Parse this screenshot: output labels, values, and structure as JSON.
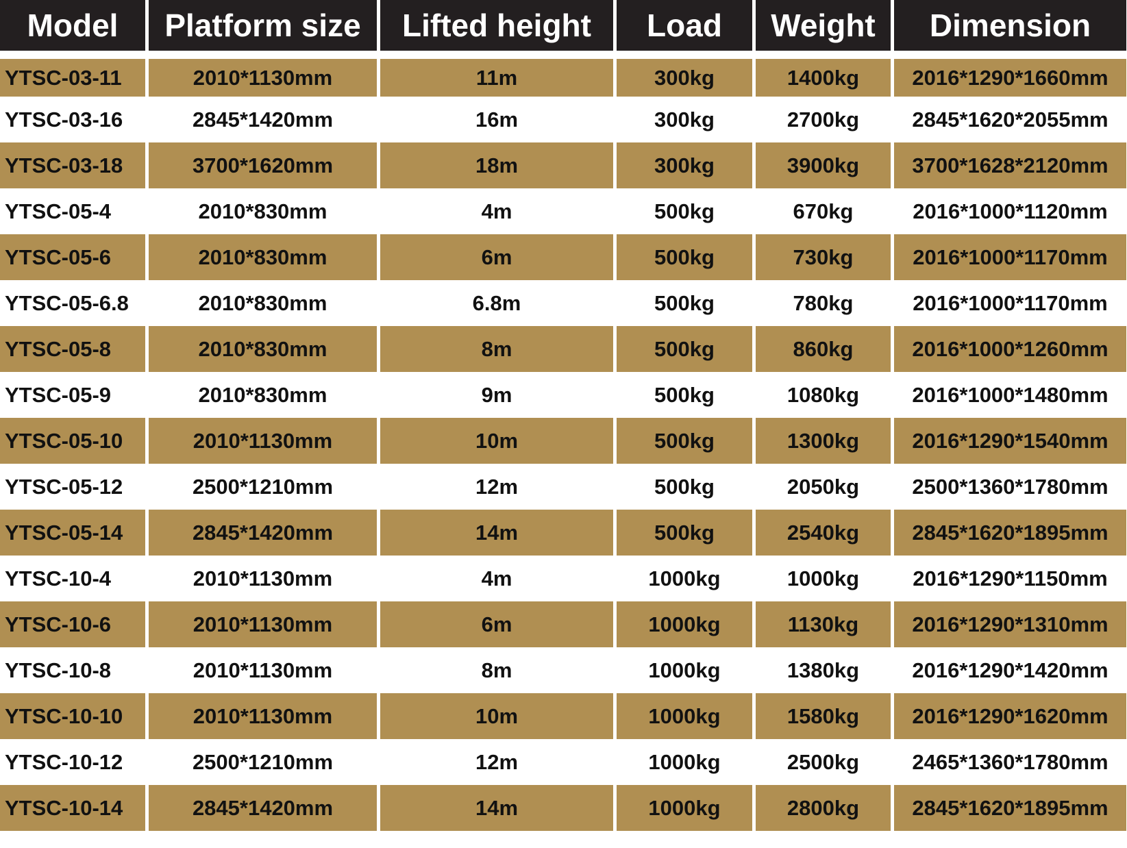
{
  "table": {
    "headers": [
      "Model",
      "Platform size",
      "Lifted height",
      "Load",
      "Weight",
      "Dimension"
    ],
    "rows": [
      [
        "YTSC-03-11",
        "2010*1130mm",
        "11m",
        "300kg",
        "1400kg",
        "2016*1290*1660mm"
      ],
      [
        "YTSC-03-16",
        "2845*1420mm",
        "16m",
        "300kg",
        "2700kg",
        "2845*1620*2055mm"
      ],
      [
        "YTSC-03-18",
        "3700*1620mm",
        "18m",
        "300kg",
        "3900kg",
        "3700*1628*2120mm"
      ],
      [
        "YTSC-05-4",
        "2010*830mm",
        "4m",
        "500kg",
        "670kg",
        "2016*1000*1120mm"
      ],
      [
        "YTSC-05-6",
        "2010*830mm",
        "6m",
        "500kg",
        "730kg",
        "2016*1000*1170mm"
      ],
      [
        "YTSC-05-6.8",
        "2010*830mm",
        "6.8m",
        "500kg",
        "780kg",
        "2016*1000*1170mm"
      ],
      [
        "YTSC-05-8",
        "2010*830mm",
        "8m",
        "500kg",
        "860kg",
        "2016*1000*1260mm"
      ],
      [
        "YTSC-05-9",
        "2010*830mm",
        "9m",
        "500kg",
        "1080kg",
        "2016*1000*1480mm"
      ],
      [
        "YTSC-05-10",
        "2010*1130mm",
        "10m",
        "500kg",
        "1300kg",
        "2016*1290*1540mm"
      ],
      [
        "YTSC-05-12",
        "2500*1210mm",
        "12m",
        "500kg",
        "2050kg",
        "2500*1360*1780mm"
      ],
      [
        "YTSC-05-14",
        "2845*1420mm",
        "14m",
        "500kg",
        "2540kg",
        "2845*1620*1895mm"
      ],
      [
        "YTSC-10-4",
        "2010*1130mm",
        "4m",
        "1000kg",
        "1000kg",
        "2016*1290*1150mm"
      ],
      [
        "YTSC-10-6",
        "2010*1130mm",
        "6m",
        "1000kg",
        "1130kg",
        "2016*1290*1310mm"
      ],
      [
        "YTSC-10-8",
        "2010*1130mm",
        "8m",
        "1000kg",
        "1380kg",
        "2016*1290*1420mm"
      ],
      [
        "YTSC-10-10",
        "2010*1130mm",
        "10m",
        "1000kg",
        "1580kg",
        "2016*1290*1620mm"
      ],
      [
        "YTSC-10-12",
        "2500*1210mm",
        "12m",
        "1000kg",
        "2500kg",
        "2465*1360*1780mm"
      ],
      [
        "YTSC-10-14",
        "2845*1420mm",
        "14m",
        "1000kg",
        "2800kg",
        "2845*1620*1895mm"
      ]
    ]
  }
}
